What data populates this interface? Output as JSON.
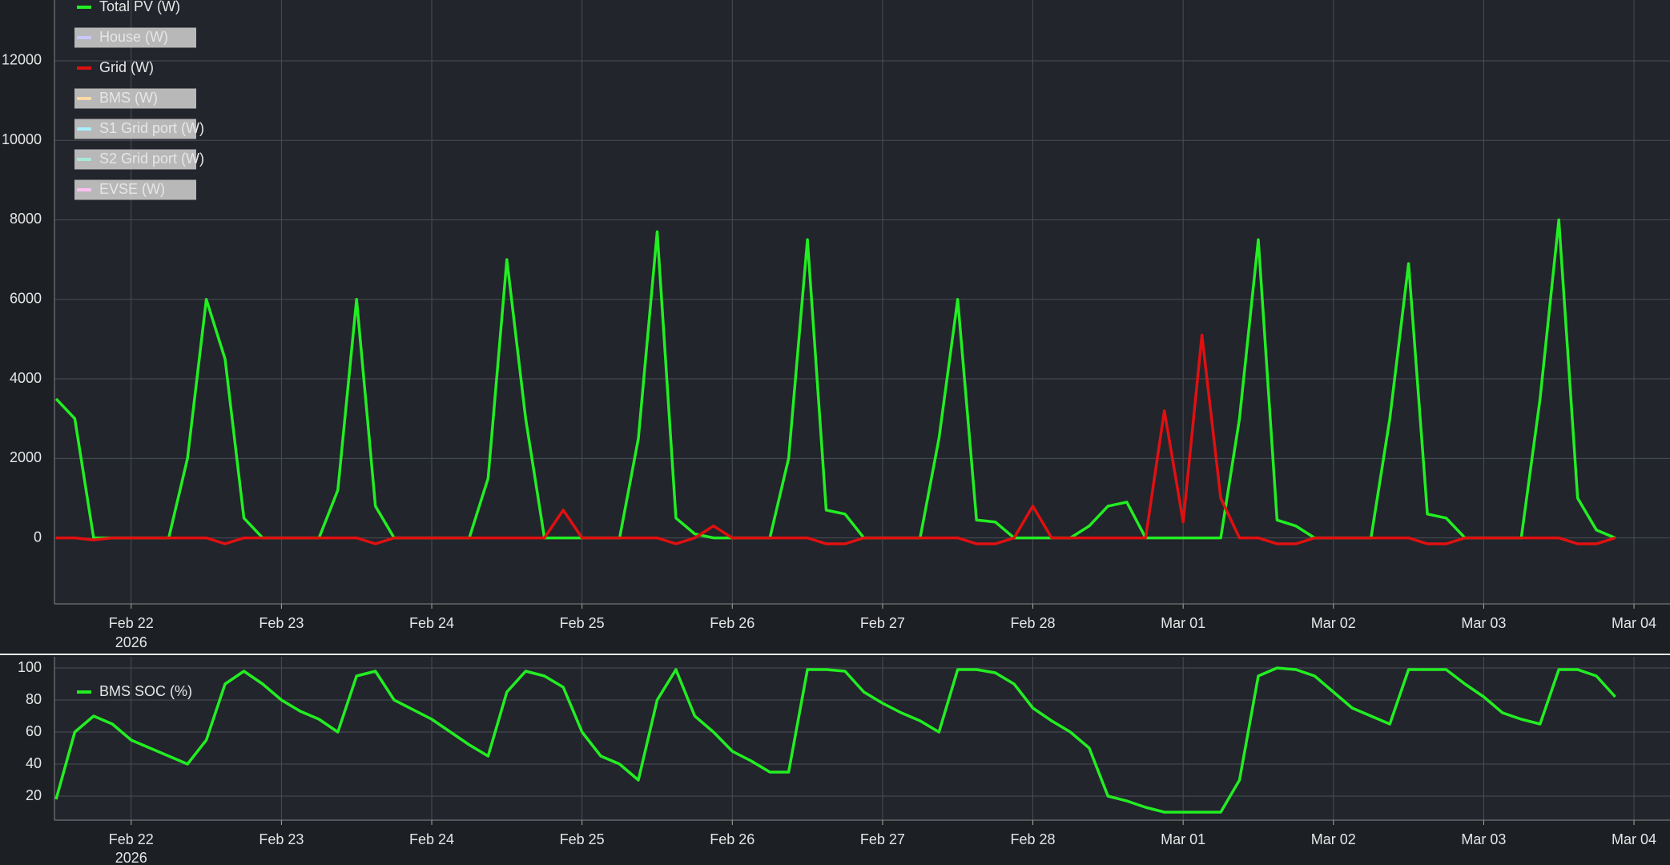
{
  "chart_data": [
    {
      "type": "line",
      "legend": "upper left",
      "grid": true,
      "x_year_label": "2026",
      "x": [
        "2026-02-21T12:00",
        "2026-02-21T15:00",
        "2026-02-21T18:00",
        "2026-02-21T21:00",
        "2026-02-22T00:00",
        "2026-02-22T03:00",
        "2026-02-22T06:00",
        "2026-02-22T09:00",
        "2026-02-22T12:00",
        "2026-02-22T15:00",
        "2026-02-22T18:00",
        "2026-02-22T21:00",
        "2026-02-23T00:00",
        "2026-02-23T03:00",
        "2026-02-23T06:00",
        "2026-02-23T09:00",
        "2026-02-23T12:00",
        "2026-02-23T15:00",
        "2026-02-23T18:00",
        "2026-02-23T21:00",
        "2026-02-24T00:00",
        "2026-02-24T03:00",
        "2026-02-24T06:00",
        "2026-02-24T09:00",
        "2026-02-24T12:00",
        "2026-02-24T15:00",
        "2026-02-24T18:00",
        "2026-02-24T21:00",
        "2026-02-25T00:00",
        "2026-02-25T03:00",
        "2026-02-25T06:00",
        "2026-02-25T09:00",
        "2026-02-25T12:00",
        "2026-02-25T15:00",
        "2026-02-25T18:00",
        "2026-02-25T21:00",
        "2026-02-26T00:00",
        "2026-02-26T03:00",
        "2026-02-26T06:00",
        "2026-02-26T09:00",
        "2026-02-26T12:00",
        "2026-02-26T15:00",
        "2026-02-26T18:00",
        "2026-02-26T21:00",
        "2026-02-27T00:00",
        "2026-02-27T03:00",
        "2026-02-27T06:00",
        "2026-02-27T09:00",
        "2026-02-27T12:00",
        "2026-02-27T15:00",
        "2026-02-27T18:00",
        "2026-02-27T21:00",
        "2026-02-28T00:00",
        "2026-02-28T03:00",
        "2026-02-28T06:00",
        "2026-02-28T09:00",
        "2026-02-28T12:00",
        "2026-02-28T15:00",
        "2026-02-28T18:00",
        "2026-02-28T21:00",
        "2026-03-01T00:00",
        "2026-03-01T03:00",
        "2026-03-01T06:00",
        "2026-03-01T09:00",
        "2026-03-01T12:00",
        "2026-03-01T15:00",
        "2026-03-01T18:00",
        "2026-03-01T21:00",
        "2026-03-02T00:00",
        "2026-03-02T03:00",
        "2026-03-02T06:00",
        "2026-03-02T09:00",
        "2026-03-02T12:00",
        "2026-03-02T15:00",
        "2026-03-02T18:00",
        "2026-03-02T21:00",
        "2026-03-03T00:00",
        "2026-03-03T03:00",
        "2026-03-03T06:00",
        "2026-03-03T09:00",
        "2026-03-03T12:00",
        "2026-03-03T15:00",
        "2026-03-03T18:00",
        "2026-03-03T21:00"
      ],
      "series": [
        {
          "name": "Total PV (W)",
          "color": "#22ee22",
          "values": [
            3500,
            3000,
            0,
            0,
            0,
            0,
            0,
            2000,
            6000,
            4500,
            500,
            0,
            0,
            0,
            0,
            1200,
            6000,
            800,
            0,
            0,
            0,
            0,
            0,
            1500,
            7000,
            3000,
            0,
            0,
            0,
            0,
            0,
            2500,
            7700,
            500,
            100,
            0,
            0,
            0,
            0,
            2000,
            7500,
            700,
            600,
            0,
            0,
            0,
            0,
            2500,
            6000,
            450,
            400,
            0,
            0,
            0,
            0,
            300,
            800,
            900,
            0,
            0,
            0,
            0,
            0,
            3000,
            7500,
            450,
            300,
            0,
            0,
            0,
            0,
            3000,
            6900,
            600,
            500,
            0,
            0,
            0,
            0,
            3500,
            8000,
            1000,
            200,
            0
          ]
        },
        {
          "name": "House (W)",
          "color": "#c8c8ff",
          "hidden": true
        },
        {
          "name": "Grid (W)",
          "color": "#e01010",
          "values": [
            0,
            0,
            -50,
            0,
            0,
            0,
            0,
            0,
            0,
            -150,
            0,
            0,
            0,
            0,
            0,
            0,
            0,
            -150,
            0,
            0,
            0,
            0,
            0,
            0,
            0,
            0,
            0,
            700,
            0,
            0,
            0,
            0,
            0,
            -150,
            0,
            300,
            0,
            0,
            0,
            0,
            0,
            -150,
            -150,
            0,
            0,
            0,
            0,
            0,
            0,
            -150,
            -150,
            0,
            800,
            0,
            0,
            0,
            0,
            0,
            0,
            3200,
            400,
            5100,
            1000,
            0,
            0,
            -150,
            -150,
            0,
            0,
            0,
            0,
            0,
            0,
            -150,
            -150,
            0,
            0,
            0,
            0,
            0,
            0,
            -150,
            -150,
            0
          ]
        },
        {
          "name": "BMS (W)",
          "color": "#ffd8a8",
          "hidden": true
        },
        {
          "name": "S1 Grid port (W)",
          "color": "#a8f0ff",
          "hidden": true
        },
        {
          "name": "S2 Grid port (W)",
          "color": "#a8e8d8",
          "hidden": true
        },
        {
          "name": "EVSE (W)",
          "color": "#ffc0f0",
          "hidden": true
        }
      ],
      "xlim": [
        "2026-02-21T11:45",
        "2026-03-04T05:45"
      ],
      "xticks": [
        {
          "value": "2026-02-22T00:00",
          "label": "Feb 22"
        },
        {
          "value": "2026-02-23T00:00",
          "label": "Feb 23"
        },
        {
          "value": "2026-02-24T00:00",
          "label": "Feb 24"
        },
        {
          "value": "2026-02-25T00:00",
          "label": "Feb 25"
        },
        {
          "value": "2026-02-26T00:00",
          "label": "Feb 26"
        },
        {
          "value": "2026-02-27T00:00",
          "label": "Feb 27"
        },
        {
          "value": "2026-02-28T00:00",
          "label": "Feb 28"
        },
        {
          "value": "2026-03-01T00:00",
          "label": "Mar 01"
        },
        {
          "value": "2026-03-02T00:00",
          "label": "Mar 02"
        },
        {
          "value": "2026-03-03T00:00",
          "label": "Mar 03"
        },
        {
          "value": "2026-03-04T00:00",
          "label": "Mar 04"
        }
      ],
      "ylim": [
        -1660,
        13530
      ],
      "yticks": [
        0,
        2000,
        4000,
        6000,
        8000,
        10000,
        12000
      ]
    },
    {
      "type": "line",
      "legend": "upper left",
      "grid": true,
      "x_year_label": "2026",
      "x": [
        "2026-02-21T12:00",
        "2026-02-21T15:00",
        "2026-02-21T18:00",
        "2026-02-21T21:00",
        "2026-02-22T00:00",
        "2026-02-22T03:00",
        "2026-02-22T06:00",
        "2026-02-22T09:00",
        "2026-02-22T12:00",
        "2026-02-22T15:00",
        "2026-02-22T18:00",
        "2026-02-22T21:00",
        "2026-02-23T00:00",
        "2026-02-23T03:00",
        "2026-02-23T06:00",
        "2026-02-23T09:00",
        "2026-02-23T12:00",
        "2026-02-23T15:00",
        "2026-02-23T18:00",
        "2026-02-23T21:00",
        "2026-02-24T00:00",
        "2026-02-24T03:00",
        "2026-02-24T06:00",
        "2026-02-24T09:00",
        "2026-02-24T12:00",
        "2026-02-24T15:00",
        "2026-02-24T18:00",
        "2026-02-24T21:00",
        "2026-02-25T00:00",
        "2026-02-25T03:00",
        "2026-02-25T06:00",
        "2026-02-25T09:00",
        "2026-02-25T12:00",
        "2026-02-25T15:00",
        "2026-02-25T18:00",
        "2026-02-25T21:00",
        "2026-02-26T00:00",
        "2026-02-26T03:00",
        "2026-02-26T06:00",
        "2026-02-26T09:00",
        "2026-02-26T12:00",
        "2026-02-26T15:00",
        "2026-02-26T18:00",
        "2026-02-26T21:00",
        "2026-02-27T00:00",
        "2026-02-27T03:00",
        "2026-02-27T06:00",
        "2026-02-27T09:00",
        "2026-02-27T12:00",
        "2026-02-27T15:00",
        "2026-02-27T18:00",
        "2026-02-27T21:00",
        "2026-02-28T00:00",
        "2026-02-28T03:00",
        "2026-02-28T06:00",
        "2026-02-28T09:00",
        "2026-02-28T12:00",
        "2026-02-28T15:00",
        "2026-02-28T18:00",
        "2026-02-28T21:00",
        "2026-03-01T00:00",
        "2026-03-01T03:00",
        "2026-03-01T06:00",
        "2026-03-01T09:00",
        "2026-03-01T12:00",
        "2026-03-01T15:00",
        "2026-03-01T18:00",
        "2026-03-01T21:00",
        "2026-03-02T00:00",
        "2026-03-02T03:00",
        "2026-03-02T06:00",
        "2026-03-02T09:00",
        "2026-03-02T12:00",
        "2026-03-02T15:00",
        "2026-03-02T18:00",
        "2026-03-02T21:00",
        "2026-03-03T00:00",
        "2026-03-03T03:00",
        "2026-03-03T06:00",
        "2026-03-03T09:00",
        "2026-03-03T12:00",
        "2026-03-03T15:00",
        "2026-03-03T18:00",
        "2026-03-03T21:00"
      ],
      "series": [
        {
          "name": "BMS SOC (%)",
          "color": "#22ee22",
          "values": [
            18,
            60,
            70,
            65,
            55,
            50,
            45,
            40,
            55,
            90,
            98,
            90,
            80,
            73,
            68,
            60,
            95,
            98,
            80,
            74,
            68,
            60,
            52,
            45,
            85,
            98,
            95,
            88,
            60,
            45,
            40,
            30,
            80,
            99,
            70,
            60,
            48,
            42,
            35,
            35,
            99,
            99,
            98,
            85,
            78,
            72,
            67,
            60,
            99,
            99,
            97,
            90,
            75,
            67,
            60,
            50,
            20,
            17,
            13,
            10,
            10,
            10,
            10,
            30,
            95,
            100,
            99,
            95,
            85,
            75,
            70,
            65,
            99,
            99,
            99,
            90,
            82,
            72,
            68,
            65,
            99,
            99,
            95,
            82
          ]
        }
      ],
      "xlim": [
        "2026-02-21T11:45",
        "2026-03-04T05:45"
      ],
      "xticks": [
        {
          "value": "2026-02-22T00:00",
          "label": "Feb 22"
        },
        {
          "value": "2026-02-23T00:00",
          "label": "Feb 23"
        },
        {
          "value": "2026-02-24T00:00",
          "label": "Feb 24"
        },
        {
          "value": "2026-02-25T00:00",
          "label": "Feb 25"
        },
        {
          "value": "2026-02-26T00:00",
          "label": "Feb 26"
        },
        {
          "value": "2026-02-27T00:00",
          "label": "Feb 27"
        },
        {
          "value": "2026-02-28T00:00",
          "label": "Feb 28"
        },
        {
          "value": "2026-03-01T00:00",
          "label": "Mar 01"
        },
        {
          "value": "2026-03-02T00:00",
          "label": "Mar 02"
        },
        {
          "value": "2026-03-03T00:00",
          "label": "Mar 03"
        },
        {
          "value": "2026-03-04T00:00",
          "label": "Mar 04"
        }
      ],
      "ylim": [
        5,
        107
      ],
      "yticks": [
        20,
        40,
        60,
        80,
        100
      ]
    }
  ]
}
